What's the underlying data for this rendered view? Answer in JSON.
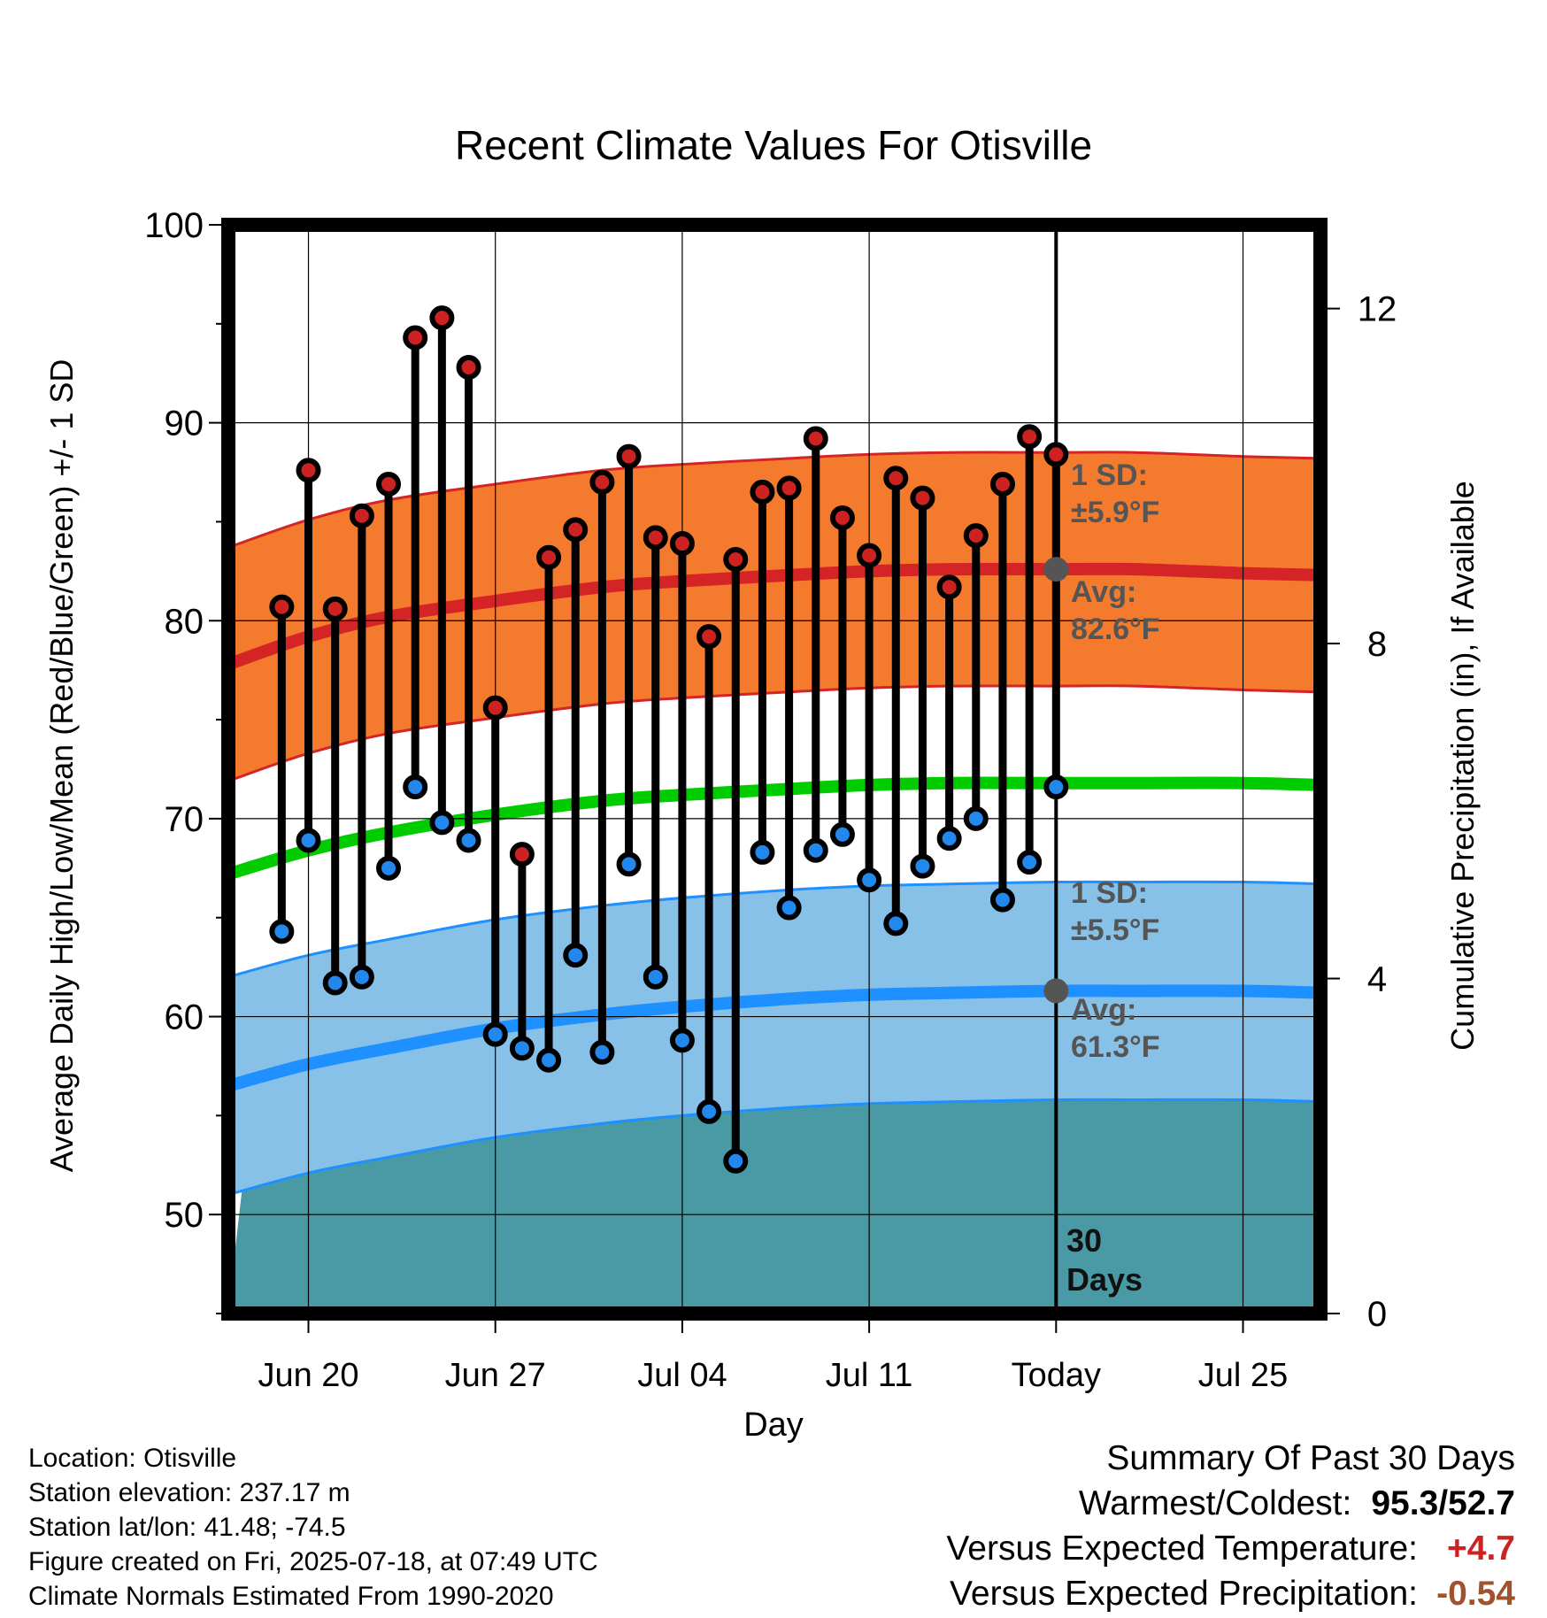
{
  "title": "Recent Climate Values For Otisville",
  "colors": {
    "high_band": "#f47a2e",
    "high_mean": "#d52425",
    "low_band": "#87c1e8",
    "low_mean": "#1e90ff",
    "mean_line": "#00cc00",
    "precip": "#4a9aa5",
    "marker_high": "#cc2222",
    "marker_low": "#2288ee",
    "summary_temp": "#cc2222",
    "summary_precip": "#a0522d"
  },
  "chart_data": {
    "type": "line",
    "xlabel": "Day",
    "ylabel_left": "Average Daily High/Low/Mean (Red/Blue/Green) +/- 1 SD",
    "ylabel_right": "Cumulative Precipitation (in), If Available",
    "ylim_left": [
      45,
      100
    ],
    "yticks_left": [
      50,
      60,
      70,
      80,
      90,
      100
    ],
    "ylim_right": [
      0,
      13.0
    ],
    "yticks_right": [
      0,
      4,
      8,
      12
    ],
    "x_tick_labels": [
      "Jun 20",
      "Jun 27",
      "Jul 04",
      "Jul 11",
      "Today",
      "Jul 25"
    ],
    "x_tick_days": [
      2,
      9,
      16,
      23,
      30,
      37
    ],
    "today_day": 30,
    "today_label": "30 Days",
    "dates": [
      "Jun 19",
      "Jun 20",
      "Jun 21",
      "Jun 22",
      "Jun 23",
      "Jun 24",
      "Jun 25",
      "Jun 26",
      "Jun 27",
      "Jun 28",
      "Jun 29",
      "Jun 30",
      "Jul 01",
      "Jul 02",
      "Jul 03",
      "Jul 04",
      "Jul 05",
      "Jul 06",
      "Jul 07",
      "Jul 08",
      "Jul 09",
      "Jul 10",
      "Jul 11",
      "Jul 12",
      "Jul 13",
      "Jul 14",
      "Jul 15",
      "Jul 16",
      "Jul 17",
      "Jul 18"
    ],
    "daily_high": [
      80.7,
      87.6,
      80.6,
      85.3,
      86.9,
      94.3,
      95.3,
      92.8,
      75.6,
      68.2,
      83.2,
      84.6,
      87.0,
      88.3,
      84.2,
      83.9,
      79.2,
      83.1,
      86.5,
      86.7,
      89.2,
      85.2,
      83.3,
      87.2,
      86.2,
      81.7,
      84.3,
      86.9,
      89.3,
      88.4
    ],
    "daily_low": [
      64.3,
      68.9,
      61.7,
      62.0,
      67.5,
      71.6,
      69.8,
      68.9,
      59.1,
      58.4,
      57.8,
      63.1,
      58.2,
      67.7,
      62.0,
      58.8,
      55.2,
      52.7,
      68.3,
      65.5,
      68.4,
      69.2,
      66.9,
      64.7,
      67.6,
      69.0,
      70.0,
      65.9,
      67.8,
      71.6
    ],
    "normal_days": [
      -1,
      2,
      5,
      9,
      13,
      16,
      20,
      23,
      26,
      30,
      33,
      37,
      39.9
    ],
    "normal_high_mean": [
      77.8,
      79.2,
      80.2,
      81.0,
      81.7,
      82.0,
      82.3,
      82.5,
      82.6,
      82.6,
      82.6,
      82.4,
      82.3
    ],
    "normal_high_sd": 5.9,
    "normal_low_mean": [
      56.5,
      57.6,
      58.4,
      59.4,
      60.1,
      60.5,
      60.9,
      61.1,
      61.2,
      61.3,
      61.3,
      61.3,
      61.2
    ],
    "normal_low_sd": 5.5,
    "normal_mean": [
      67.2,
      68.4,
      69.3,
      70.2,
      70.9,
      71.2,
      71.5,
      71.7,
      71.8,
      71.8,
      71.8,
      71.8,
      71.7
    ],
    "precip_days": [
      -1,
      -0.3,
      0.5,
      3.5,
      4.5,
      7.5,
      8.5,
      12,
      13,
      14,
      15,
      16,
      17,
      24,
      25,
      30,
      39.9
    ],
    "precip_values": [
      0.05,
      2.0,
      2.05,
      2.05,
      2.1,
      2.1,
      2.3,
      2.3,
      2.85,
      2.85,
      3.1,
      3.1,
      3.1,
      3.1,
      3.6,
      3.6,
      3.6
    ],
    "annotation_high_sd": "1 SD:",
    "annotation_high_sd_val": "±5.9°F",
    "annotation_high_avg": "Avg:",
    "annotation_high_avg_val": "82.6°F",
    "annotation_low_sd": "1 SD:",
    "annotation_low_sd_val": "±5.5°F",
    "annotation_low_avg": "Avg:",
    "annotation_low_avg_val": "61.3°F",
    "today_high_avg": 82.6,
    "today_low_avg": 61.3
  },
  "footer": {
    "location": "Location: Otisville",
    "elevation": "Station elevation: 237.17 m",
    "latlon": "Station lat/lon: 41.48; -74.5",
    "created": "Figure created on Fri, 2025-07-18, at 07:49 UTC",
    "normals": "Climate Normals Estimated From 1990-2020"
  },
  "summary": {
    "title": "Summary Of Past 30 Days",
    "warm_cold_label": "Warmest/Coldest:",
    "warm_cold_value": "95.3/52.7",
    "temp_label": "Versus Expected Temperature:",
    "temp_value": "+4.7",
    "precip_label": "Versus Expected Precipitation:",
    "precip_value": "-0.54"
  }
}
